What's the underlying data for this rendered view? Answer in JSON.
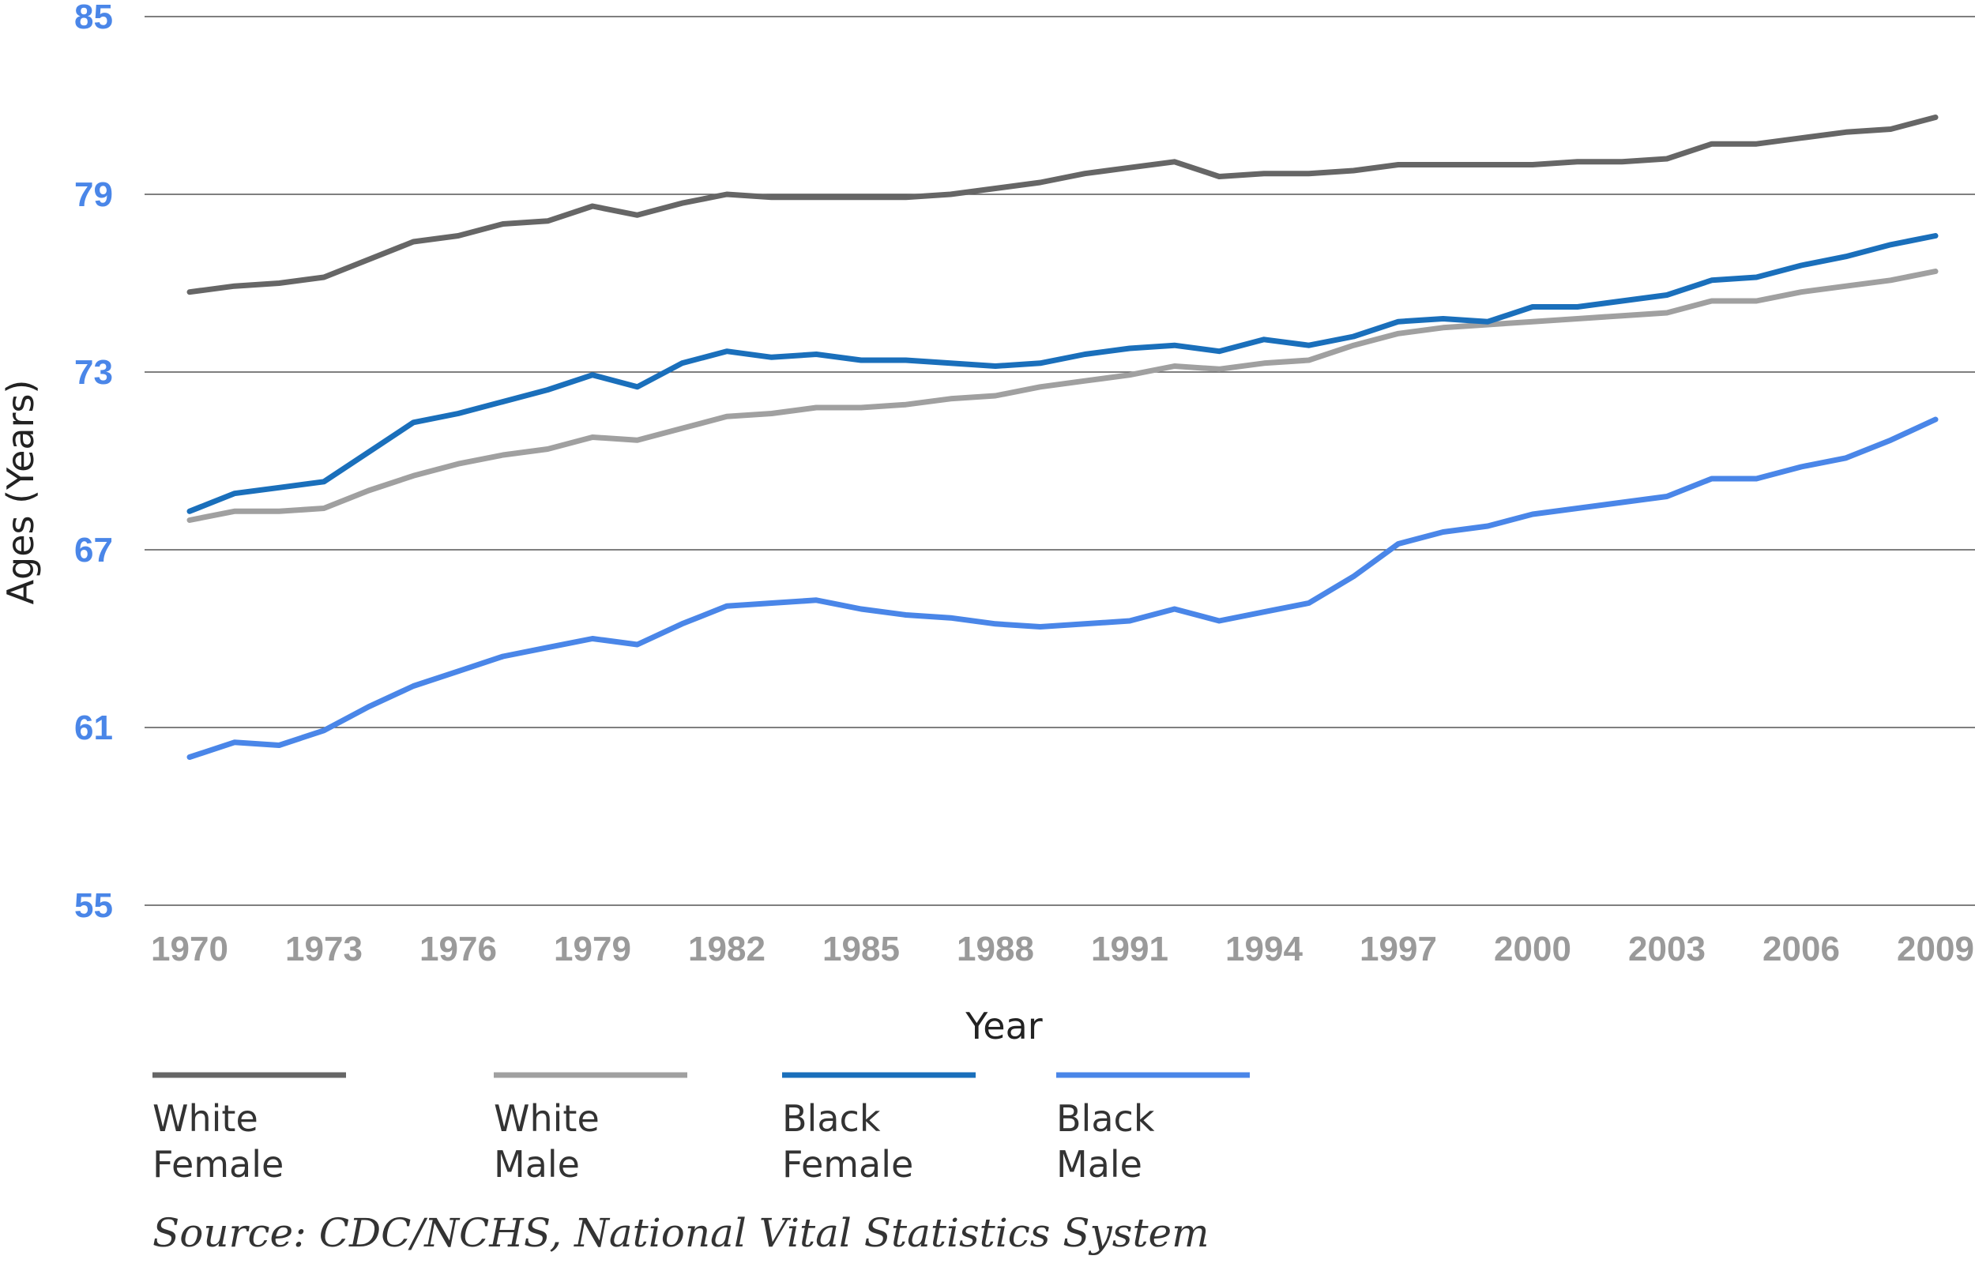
{
  "chart_data": {
    "type": "line",
    "title": "",
    "xlabel": "Year",
    "ylabel": "Ages (Years)",
    "ylim": [
      55,
      85
    ],
    "yticks": [
      55,
      61,
      67,
      73,
      79,
      85
    ],
    "xlim": [
      1970,
      2009
    ],
    "xticks": [
      1970,
      1973,
      1976,
      1979,
      1982,
      1985,
      1988,
      1991,
      1994,
      1997,
      2000,
      2003,
      2006,
      2009
    ],
    "grid": true,
    "legend_position": "bottom",
    "source": "Source: CDC/NCHS, National Vital Statistics System",
    "x": [
      1970,
      1971,
      1972,
      1973,
      1974,
      1975,
      1976,
      1977,
      1978,
      1979,
      1980,
      1981,
      1982,
      1983,
      1984,
      1985,
      1986,
      1987,
      1988,
      1989,
      1990,
      1991,
      1992,
      1993,
      1994,
      1995,
      1996,
      1997,
      1998,
      1999,
      2000,
      2001,
      2002,
      2003,
      2004,
      2005,
      2006,
      2007,
      2008,
      2009
    ],
    "series": [
      {
        "name": "White Female",
        "legend_lines": [
          "White",
          "Female"
        ],
        "color": "#666666",
        "values": [
          75.7,
          75.9,
          76.0,
          76.2,
          76.8,
          77.4,
          77.6,
          78.0,
          78.1,
          78.6,
          78.3,
          78.7,
          79.0,
          78.9,
          78.9,
          78.9,
          78.9,
          79.0,
          79.2,
          79.4,
          79.7,
          79.9,
          80.1,
          79.6,
          79.7,
          79.7,
          79.8,
          80.0,
          80.0,
          80.0,
          80.0,
          80.1,
          80.1,
          80.2,
          80.7,
          80.7,
          80.9,
          81.1,
          81.2,
          81.6
        ]
      },
      {
        "name": "White Male",
        "legend_lines": [
          "White",
          "Male"
        ],
        "color": "#a0a0a0",
        "values": [
          68.0,
          68.3,
          68.3,
          68.4,
          69.0,
          69.5,
          69.9,
          70.2,
          70.4,
          70.8,
          70.7,
          71.1,
          71.5,
          71.6,
          71.8,
          71.8,
          71.9,
          72.1,
          72.2,
          72.5,
          72.7,
          72.9,
          73.2,
          73.1,
          73.3,
          73.4,
          73.9,
          74.3,
          74.5,
          74.6,
          74.7,
          74.8,
          74.9,
          75.0,
          75.4,
          75.4,
          75.7,
          75.9,
          76.1,
          76.4
        ]
      },
      {
        "name": "Black Female",
        "legend_lines": [
          "Black",
          "Female"
        ],
        "color": "#1a6fbb",
        "values": [
          68.3,
          68.9,
          69.1,
          69.3,
          70.3,
          71.3,
          71.6,
          72.0,
          72.4,
          72.9,
          72.5,
          73.3,
          73.7,
          73.5,
          73.6,
          73.4,
          73.4,
          73.3,
          73.2,
          73.3,
          73.6,
          73.8,
          73.9,
          73.7,
          74.1,
          73.9,
          74.2,
          74.7,
          74.8,
          74.7,
          75.2,
          75.2,
          75.4,
          75.6,
          76.1,
          76.2,
          76.6,
          76.9,
          77.3,
          77.6
        ]
      },
      {
        "name": "Black Male",
        "legend_lines": [
          "Black",
          "Male"
        ],
        "color": "#4a86e8",
        "values": [
          60.0,
          60.5,
          60.4,
          60.9,
          61.7,
          62.4,
          62.9,
          63.4,
          63.7,
          64.0,
          63.8,
          64.5,
          65.1,
          65.2,
          65.3,
          65.0,
          64.8,
          64.7,
          64.5,
          64.4,
          64.5,
          64.6,
          65.0,
          64.6,
          64.9,
          65.2,
          66.1,
          67.2,
          67.6,
          67.8,
          68.2,
          68.4,
          68.6,
          68.8,
          69.4,
          69.4,
          69.8,
          70.1,
          70.7,
          71.4
        ]
      }
    ]
  }
}
